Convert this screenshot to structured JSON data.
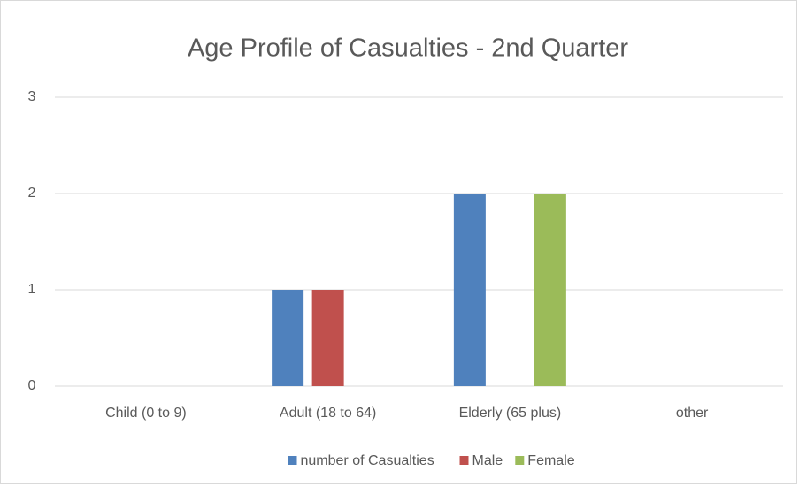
{
  "chart_data": {
    "type": "bar",
    "title": "Age Profile of Casualties - 2nd Quarter",
    "categories": [
      "Child (0 to 9)",
      "Adult (18 to 64)",
      "Elderly (65 plus)",
      "other"
    ],
    "series": [
      {
        "name": "number of Casualties",
        "color": "#4f81bd",
        "values": [
          0,
          1,
          2,
          0
        ]
      },
      {
        "name": "Male",
        "color": "#c0504d",
        "values": [
          0,
          1,
          0,
          0
        ]
      },
      {
        "name": "Female",
        "color": "#9bbb59",
        "values": [
          0,
          0,
          2,
          0
        ]
      }
    ],
    "ylim": [
      0,
      3
    ],
    "yticks": [
      0,
      1,
      2,
      3
    ],
    "grid": true,
    "legend": "bottom"
  }
}
